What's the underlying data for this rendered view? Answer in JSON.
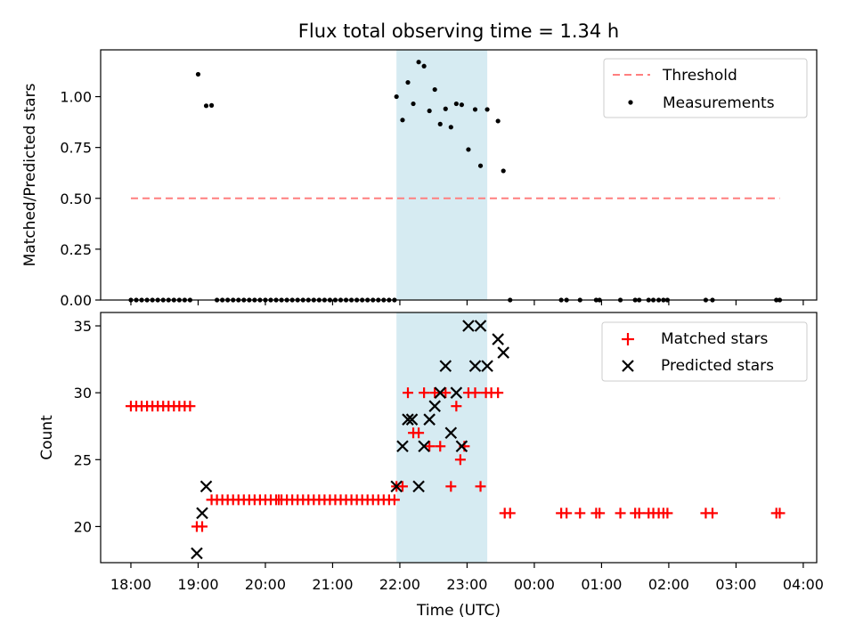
{
  "chart_data": [
    {
      "type": "scatter",
      "title": "Flux total observing time = 1.34 h",
      "xlabel": "",
      "ylabel": "Matched/Predicted stars",
      "ylim": [
        0,
        1.23
      ],
      "yticks": [
        "0.00",
        "0.25",
        "0.50",
        "0.75",
        "1.00"
      ],
      "ytick_values": [
        0,
        0.25,
        0.5,
        0.75,
        1.0
      ],
      "xlim": [
        -0.45,
        10.2
      ],
      "highlight_span": [
        3.95,
        5.3
      ],
      "legend_position": "upper right",
      "threshold": {
        "name": "Threshold",
        "value": 0.5,
        "x_range": [
          0.0,
          9.65
        ],
        "color": "#ff7f7f"
      },
      "series": [
        {
          "name": "Measurements",
          "color": "#000000",
          "x": [
            0.0,
            0.08,
            0.16,
            0.24,
            0.32,
            0.4,
            0.48,
            0.56,
            0.64,
            0.72,
            0.8,
            0.88,
            1.0,
            1.12,
            1.2,
            1.28,
            1.36,
            1.44,
            1.52,
            1.6,
            1.68,
            1.76,
            1.84,
            1.92,
            2.0,
            2.08,
            2.16,
            2.24,
            2.32,
            2.4,
            2.48,
            2.56,
            2.64,
            2.72,
            2.8,
            2.88,
            2.96,
            3.04,
            3.12,
            3.2,
            3.28,
            3.36,
            3.44,
            3.52,
            3.6,
            3.68,
            3.76,
            3.84,
            3.92,
            3.95,
            4.04,
            4.12,
            4.2,
            4.28,
            4.36,
            4.44,
            4.52,
            4.6,
            4.68,
            4.76,
            4.84,
            4.92,
            5.02,
            5.12,
            5.2,
            5.3,
            5.46,
            5.54,
            5.64,
            6.4,
            6.48,
            6.68,
            6.92,
            6.97,
            7.28,
            7.5,
            7.56,
            7.7,
            7.77,
            7.85,
            7.92,
            7.98,
            8.55,
            8.65,
            9.6,
            9.65
          ],
          "y": [
            0,
            0,
            0,
            0,
            0,
            0,
            0,
            0,
            0,
            0,
            0,
            0,
            1.11,
            0.955,
            0.957,
            0,
            0,
            0,
            0,
            0,
            0,
            0,
            0,
            0,
            0,
            0,
            0,
            0,
            0,
            0,
            0,
            0,
            0,
            0,
            0,
            0,
            0,
            0,
            0,
            0,
            0,
            0,
            0,
            0,
            0,
            0,
            0,
            0,
            0,
            1.0,
            0.885,
            1.07,
            0.965,
            1.17,
            1.15,
            0.93,
            1.035,
            0.865,
            0.94,
            0.85,
            0.965,
            0.96,
            0.74,
            0.937,
            0.66,
            0.937,
            0.88,
            0.635,
            0,
            0,
            0,
            0,
            0,
            0,
            0,
            0,
            0,
            0,
            0,
            0,
            0,
            0,
            0,
            0,
            0,
            0
          ]
        }
      ]
    },
    {
      "type": "scatter",
      "title": "",
      "xlabel": "Time (UTC)",
      "ylabel": "Count",
      "ylim": [
        17.3,
        36.0
      ],
      "yticks": [
        "20",
        "25",
        "30",
        "35"
      ],
      "ytick_values": [
        20,
        25,
        30,
        35
      ],
      "xlim": [
        -0.45,
        10.2
      ],
      "xticks": [
        "18:00",
        "19:00",
        "20:00",
        "21:00",
        "22:00",
        "23:00",
        "00:00",
        "01:00",
        "02:00",
        "03:00",
        "04:00"
      ],
      "xtick_values": [
        0,
        1,
        2,
        3,
        4,
        5,
        6,
        7,
        8,
        9,
        10
      ],
      "highlight_span": [
        3.95,
        5.3
      ],
      "legend_position": "upper right",
      "series": [
        {
          "name": "Matched stars",
          "color": "#ff0000",
          "x": [
            0.0,
            0.08,
            0.16,
            0.24,
            0.32,
            0.4,
            0.48,
            0.56,
            0.64,
            0.72,
            0.8,
            0.88,
            0.98,
            1.06,
            1.2,
            1.28,
            1.36,
            1.44,
            1.52,
            1.6,
            1.68,
            1.76,
            1.84,
            1.92,
            2.0,
            2.08,
            2.16,
            2.2,
            2.24,
            2.32,
            2.4,
            2.48,
            2.56,
            2.64,
            2.72,
            2.8,
            2.88,
            2.96,
            3.04,
            3.12,
            3.2,
            3.28,
            3.36,
            3.44,
            3.52,
            3.6,
            3.68,
            3.76,
            3.84,
            3.92,
            3.95,
            4.04,
            4.12,
            4.2,
            4.28,
            4.36,
            4.44,
            4.52,
            4.6,
            4.68,
            4.76,
            4.84,
            4.9,
            4.96,
            5.02,
            5.12,
            5.2,
            5.28,
            5.36,
            5.46,
            5.56,
            5.64,
            6.4,
            6.48,
            6.68,
            6.92,
            6.97,
            7.28,
            7.5,
            7.56,
            7.7,
            7.77,
            7.85,
            7.92,
            7.98,
            8.55,
            8.65,
            9.6,
            9.65
          ],
          "y": [
            29,
            29,
            29,
            29,
            29,
            29,
            29,
            29,
            29,
            29,
            29,
            29,
            20,
            20,
            22,
            22,
            22,
            22,
            22,
            22,
            22,
            22,
            22,
            22,
            22,
            22,
            22,
            22,
            22,
            22,
            22,
            22,
            22,
            22,
            22,
            22,
            22,
            22,
            22,
            22,
            22,
            22,
            22,
            22,
            22,
            22,
            22,
            22,
            22,
            22,
            23,
            23,
            30,
            27,
            27,
            30,
            26,
            30,
            26,
            30,
            23,
            29,
            25,
            26,
            30,
            30,
            23,
            30,
            30,
            30,
            21,
            21,
            21,
            21,
            21,
            21,
            21,
            21,
            21,
            21,
            21,
            21,
            21,
            21,
            21,
            21,
            21,
            21,
            21
          ]
        },
        {
          "name": "Predicted stars",
          "color": "#000000",
          "x": [
            0.98,
            1.06,
            1.12,
            3.95,
            4.04,
            4.12,
            4.18,
            4.28,
            4.36,
            4.44,
            4.52,
            4.6,
            4.68,
            4.76,
            4.84,
            4.92,
            5.02,
            5.12,
            5.2,
            5.3,
            5.46,
            5.54
          ],
          "y": [
            18,
            21,
            23,
            23,
            26,
            28,
            28,
            23,
            26,
            28,
            29,
            30,
            32,
            27,
            30,
            26,
            35,
            32,
            35,
            32,
            34,
            33
          ]
        }
      ]
    }
  ]
}
